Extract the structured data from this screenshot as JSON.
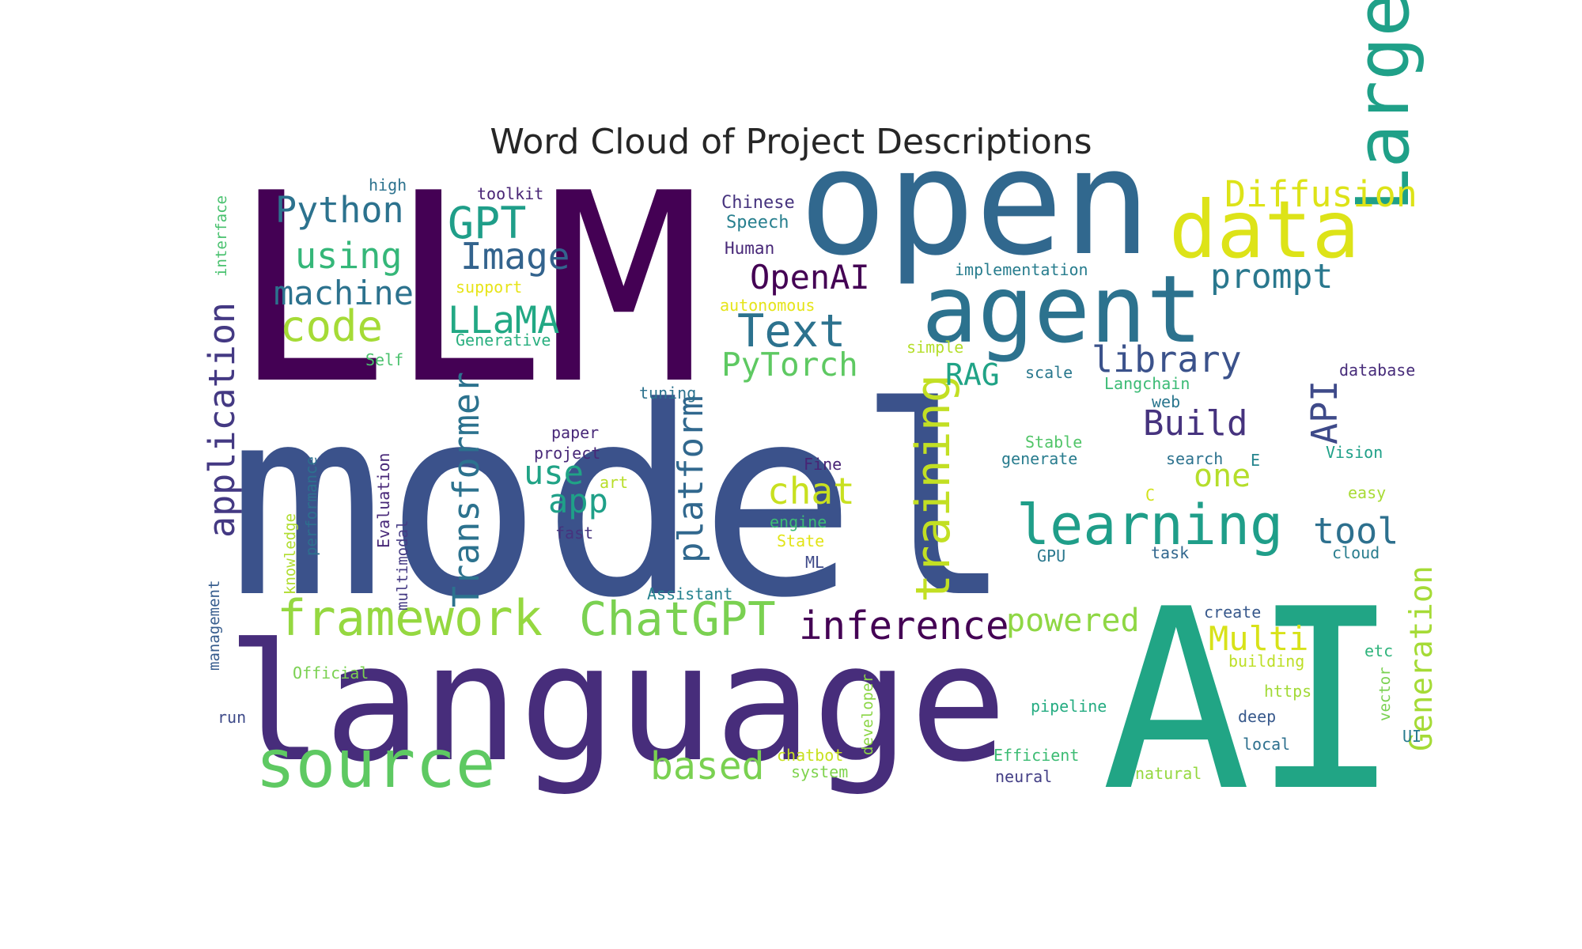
{
  "chart_data": {
    "type": "wordcloud",
    "title": "Word Cloud of Project Descriptions",
    "colormap": "viridis",
    "words": [
      {
        "text": "model",
        "color": "#3b528b"
      },
      {
        "text": "LLM",
        "color": "#440154"
      },
      {
        "text": "open",
        "color": "#31688e"
      },
      {
        "text": "language",
        "color": "#472d7b"
      },
      {
        "text": "AI",
        "color": "#21a585"
      },
      {
        "text": "agent",
        "color": "#2c728e"
      },
      {
        "text": "data",
        "color": "#dde318"
      },
      {
        "text": "Large",
        "color": "#1fa088"
      },
      {
        "text": "source",
        "color": "#5ec962"
      },
      {
        "text": "framework",
        "color": "#95d840"
      },
      {
        "text": "ChatGPT",
        "color": "#7ad151"
      },
      {
        "text": "learning",
        "color": "#1f9e89"
      },
      {
        "text": "inference",
        "color": "#440154"
      },
      {
        "text": "training",
        "color": "#c2df23"
      },
      {
        "text": "application",
        "color": "#443983"
      },
      {
        "text": "Transformer",
        "color": "#2c728e"
      },
      {
        "text": "platform",
        "color": "#31688e"
      },
      {
        "text": "Python",
        "color": "#2c728e"
      },
      {
        "text": "GPT",
        "color": "#1f9e89"
      },
      {
        "text": "Image",
        "color": "#33638d"
      },
      {
        "text": "using",
        "color": "#35b779"
      },
      {
        "text": "machine",
        "color": "#2c728e"
      },
      {
        "text": "code",
        "color": "#a5db36"
      },
      {
        "text": "LLaMA",
        "color": "#22a884"
      },
      {
        "text": "Diffusion",
        "color": "#dde318"
      },
      {
        "text": "prompt",
        "color": "#2a788e"
      },
      {
        "text": "OpenAI",
        "color": "#440154"
      },
      {
        "text": "Text",
        "color": "#2c728e"
      },
      {
        "text": "PyTorch",
        "color": "#5ec962"
      },
      {
        "text": "RAG",
        "color": "#20a386"
      },
      {
        "text": "library",
        "color": "#3b528b"
      },
      {
        "text": "Build",
        "color": "#46337e"
      },
      {
        "text": "API",
        "color": "#3e4a89"
      },
      {
        "text": "one",
        "color": "#b5de2b"
      },
      {
        "text": "tool",
        "color": "#2d708e"
      },
      {
        "text": "Generation",
        "color": "#a5db36"
      },
      {
        "text": "Multi",
        "color": "#d8e219"
      },
      {
        "text": "powered",
        "color": "#8fd744"
      },
      {
        "text": "use",
        "color": "#20a386"
      },
      {
        "text": "app",
        "color": "#1fa088"
      },
      {
        "text": "chat",
        "color": "#c8e020"
      },
      {
        "text": "based",
        "color": "#7ad151"
      },
      {
        "text": "Chinese",
        "color": "#46337e"
      },
      {
        "text": "Speech",
        "color": "#277f8e"
      },
      {
        "text": "Human",
        "color": "#482878"
      },
      {
        "text": "implementation",
        "color": "#287d8e"
      },
      {
        "text": "autonomous",
        "color": "#e5e419"
      },
      {
        "text": "toolkit",
        "color": "#482475"
      },
      {
        "text": "high",
        "color": "#2c728e"
      },
      {
        "text": "interface",
        "color": "#48c16e"
      },
      {
        "text": "support",
        "color": "#e7e419"
      },
      {
        "text": "Generative",
        "color": "#29af7f"
      },
      {
        "text": "Self",
        "color": "#4ac16d"
      },
      {
        "text": "simple",
        "color": "#b5de2b"
      },
      {
        "text": "scale",
        "color": "#2a788e"
      },
      {
        "text": "Langchain",
        "color": "#3bbb75"
      },
      {
        "text": "database",
        "color": "#472c7a"
      },
      {
        "text": "web",
        "color": "#2a768e"
      },
      {
        "text": "tuning",
        "color": "#2c728e"
      },
      {
        "text": "paper",
        "color": "#482878"
      },
      {
        "text": "project",
        "color": "#482878"
      },
      {
        "text": "art",
        "color": "#b8de29"
      },
      {
        "text": "fast",
        "color": "#46337e"
      },
      {
        "text": "Fine",
        "color": "#482475"
      },
      {
        "text": "engine",
        "color": "#3dbc74"
      },
      {
        "text": "State",
        "color": "#e2e418"
      },
      {
        "text": "ML",
        "color": "#3e4989"
      },
      {
        "text": "Stable",
        "color": "#52c569"
      },
      {
        "text": "generate",
        "color": "#287c8e"
      },
      {
        "text": "search",
        "color": "#2c728e"
      },
      {
        "text": "E",
        "color": "#25858e"
      },
      {
        "text": "Vision",
        "color": "#1fa088"
      },
      {
        "text": "C",
        "color": "#d2e21b"
      },
      {
        "text": "easy",
        "color": "#a8db34"
      },
      {
        "text": "task",
        "color": "#31678e"
      },
      {
        "text": "GPU",
        "color": "#2a788e"
      },
      {
        "text": "cloud",
        "color": "#287d8e"
      },
      {
        "text": "create",
        "color": "#38598c"
      },
      {
        "text": "etc",
        "color": "#2fb47c"
      },
      {
        "text": "building",
        "color": "#bddf26"
      },
      {
        "text": "vector",
        "color": "#7ad151"
      },
      {
        "text": "https",
        "color": "#a2da37"
      },
      {
        "text": "deep",
        "color": "#38598c"
      },
      {
        "text": "local",
        "color": "#2d708e"
      },
      {
        "text": "UI",
        "color": "#287c8e"
      },
      {
        "text": "natural",
        "color": "#95d840"
      },
      {
        "text": "pipeline",
        "color": "#25ac82"
      },
      {
        "text": "Efficient",
        "color": "#3dbc74"
      },
      {
        "text": "neural",
        "color": "#433e85"
      },
      {
        "text": "Assistant",
        "color": "#26828e"
      },
      {
        "text": "chatbot",
        "color": "#c8e020"
      },
      {
        "text": "system",
        "color": "#7fd34e"
      },
      {
        "text": "developer",
        "color": "#8bd646"
      },
      {
        "text": "Official",
        "color": "#7ad151"
      },
      {
        "text": "run",
        "color": "#3e4a89"
      },
      {
        "text": "management",
        "color": "#365c8d"
      },
      {
        "text": "knowledge",
        "color": "#b0dd2f"
      },
      {
        "text": "performance",
        "color": "#2d708e"
      },
      {
        "text": "Evaluation",
        "color": "#482878"
      },
      {
        "text": "multimodal",
        "color": "#443a83"
      }
    ]
  }
}
